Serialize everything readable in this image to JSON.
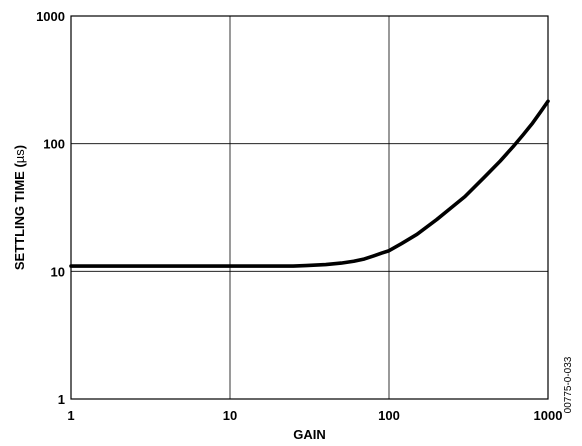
{
  "chart_data": {
    "type": "line",
    "xlabel": "GAIN",
    "ylabel_main": "SETTLING TIME (",
    "ylabel_unit": "µs",
    "ylabel_close": ")",
    "x_scale": "log",
    "y_scale": "log",
    "xlim": [
      1,
      1000
    ],
    "ylim": [
      1,
      1000
    ],
    "grid": true,
    "x_ticks": [
      {
        "value": 1,
        "label": "1"
      },
      {
        "value": 10,
        "label": "10"
      },
      {
        "value": 100,
        "label": "100"
      },
      {
        "value": 1000,
        "label": "1000"
      }
    ],
    "y_ticks": [
      {
        "value": 1,
        "label": "1"
      },
      {
        "value": 10,
        "label": "10"
      },
      {
        "value": 100,
        "label": "100"
      },
      {
        "value": 1000,
        "label": "1000"
      }
    ],
    "series": [
      {
        "color": "#000000",
        "x": [
          1,
          2,
          5,
          10,
          20,
          25,
          30,
          40,
          50,
          60,
          70,
          80,
          90,
          100,
          120,
          150,
          200,
          250,
          300,
          400,
          500,
          600,
          700,
          800,
          900,
          1000
        ],
        "y": [
          11,
          11,
          11,
          11,
          11,
          11,
          11.1,
          11.3,
          11.6,
          12,
          12.5,
          13.2,
          13.9,
          14.5,
          16.5,
          19.5,
          25.5,
          32,
          38.5,
          55,
          73,
          94,
          118,
          145,
          178,
          215
        ]
      }
    ]
  },
  "figure_id": "00775-0-033"
}
